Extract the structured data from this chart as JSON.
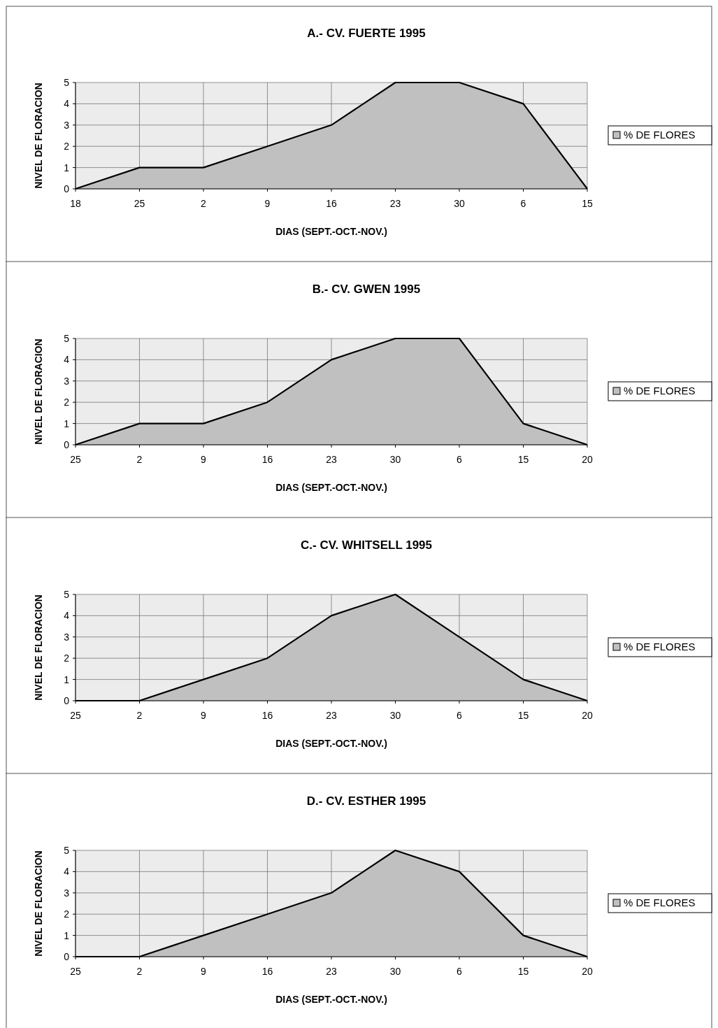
{
  "chart_data": [
    {
      "type": "area",
      "title": "A.- CV. FUERTE 1995",
      "xlabel": "DIAS (SEPT.-OCT.-NOV.)",
      "ylabel": "NIVEL DE FLORACION",
      "categories": [
        "18",
        "25",
        "2",
        "9",
        "16",
        "23",
        "30",
        "6",
        "15"
      ],
      "series": [
        {
          "name": "% DE FLORES",
          "color": "#c0c0c0",
          "values": [
            0,
            1,
            1,
            2,
            3,
            5,
            5,
            4,
            0
          ]
        }
      ],
      "ylim": [
        0,
        5
      ],
      "yticks": [
        0,
        1,
        2,
        3,
        4,
        5
      ],
      "grid": true,
      "legend": "right"
    },
    {
      "type": "area",
      "title": "B.- CV. GWEN 1995",
      "xlabel": "DIAS (SEPT.-OCT.-NOV.)",
      "ylabel": "NIVEL DE FLORACION",
      "categories": [
        "25",
        "2",
        "9",
        "16",
        "23",
        "30",
        "6",
        "15",
        "20"
      ],
      "series": [
        {
          "name": "% DE FLORES",
          "color": "#c0c0c0",
          "values": [
            0,
            1,
            1,
            2,
            4,
            5,
            5,
            1,
            0
          ]
        }
      ],
      "ylim": [
        0,
        5
      ],
      "yticks": [
        0,
        1,
        2,
        3,
        4,
        5
      ],
      "grid": true,
      "legend": "right"
    },
    {
      "type": "area",
      "title": "C.- CV. WHITSELL 1995",
      "xlabel": "DIAS (SEPT.-OCT.-NOV.)",
      "ylabel": "NIVEL DE FLORACION",
      "categories": [
        "25",
        "2",
        "9",
        "16",
        "23",
        "30",
        "6",
        "15",
        "20"
      ],
      "series": [
        {
          "name": "% DE FLORES",
          "color": "#c0c0c0",
          "values": [
            0,
            0,
            1,
            2,
            4,
            5,
            3,
            1,
            0
          ]
        }
      ],
      "ylim": [
        0,
        5
      ],
      "yticks": [
        0,
        1,
        2,
        3,
        4,
        5
      ],
      "grid": true,
      "legend": "right"
    },
    {
      "type": "area",
      "title": "D.- CV. ESTHER 1995",
      "xlabel": "DIAS (SEPT.-OCT.-NOV.)",
      "ylabel": "NIVEL DE FLORACION",
      "categories": [
        "25",
        "2",
        "9",
        "16",
        "23",
        "30",
        "6",
        "15",
        "20"
      ],
      "series": [
        {
          "name": "% DE FLORES",
          "color": "#c0c0c0",
          "values": [
            0,
            0,
            1,
            2,
            3,
            5,
            4,
            1,
            0
          ]
        }
      ],
      "ylim": [
        0,
        5
      ],
      "yticks": [
        0,
        1,
        2,
        3,
        4,
        5
      ],
      "grid": true,
      "legend": "right"
    }
  ]
}
